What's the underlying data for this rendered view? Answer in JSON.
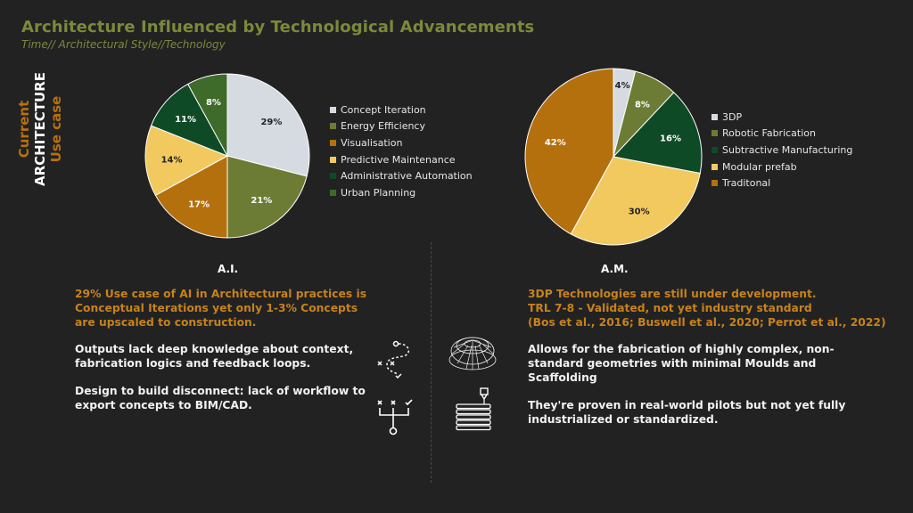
{
  "header": {
    "title": "Architecture Influenced by Technological Advancements",
    "subtitle": "Time// Architectural Style//Technology"
  },
  "side_label": {
    "current": "Current",
    "architecture": "ARCHITECTURE",
    "use_case": "Use case"
  },
  "colors": {
    "background": "#222222",
    "title": "#7a8a3a",
    "accent_orange": "#c7821a"
  },
  "chart_data": [
    {
      "type": "pie",
      "title": "",
      "label": "A.I.",
      "categories": [
        "Concept Iteration",
        "Energy Efficiency",
        "Visualisation",
        "Predictive Maintenance",
        "Administrative Automation",
        "Urban Planning"
      ],
      "values": [
        29,
        21,
        17,
        14,
        11,
        8
      ],
      "value_labels": [
        "29%",
        "21%",
        "17%",
        "14%",
        "11%",
        "8%"
      ],
      "colors": [
        "#d6dbe2",
        "#6d7c34",
        "#b5700e",
        "#f2c95f",
        "#0e4a26",
        "#3e6a2a"
      ],
      "legend_position": "right"
    },
    {
      "type": "pie",
      "title": "",
      "label": "A.M.",
      "categories": [
        "3DP",
        "Robotic Fabrication",
        "Subtractive Manufacturing",
        "Modular prefab",
        "Traditonal"
      ],
      "values": [
        4,
        8,
        16,
        30,
        42
      ],
      "value_labels": [
        "4%",
        "8%",
        "16%",
        "30%",
        "42%"
      ],
      "colors": [
        "#d6dbe2",
        "#6d7c34",
        "#0e4a26",
        "#f2c95f",
        "#b5700e"
      ],
      "legend_position": "right"
    }
  ],
  "ai": {
    "label": "A.I.",
    "highlight": "29% Use case of AI in Architectural practices is Conceptual Iterations yet only 1-3% Concepts are upscaled to construction.",
    "point1": "Outputs lack deep knowledge about context, fabrication logics and feedback loops.",
    "point2": "Design to build disconnect: lack of workflow to export concepts to BIM/CAD."
  },
  "am": {
    "label": "A.M.",
    "highlight_line1": "3DP Technologies are still under development.",
    "highlight_line2": "TRL 7-8  - Validated, not yet industry standard",
    "highlight_line3": "(Bos et al., 2016; Buswell et al., 2020; Perrot et al., 2022)",
    "point1": "Allows for the fabrication of highly complex, non-standard geometries with minimal Moulds and Scaffolding",
    "point2": "They're proven in real-world pilots but not yet fully industrialized or standardized."
  },
  "icons": {
    "ai_icon1": "strategy-path-icon",
    "ai_icon2": "decision-tree-icon",
    "am_icon1": "wireframe-dome-icon",
    "am_icon2": "3d-printer-nozzle-icon"
  }
}
